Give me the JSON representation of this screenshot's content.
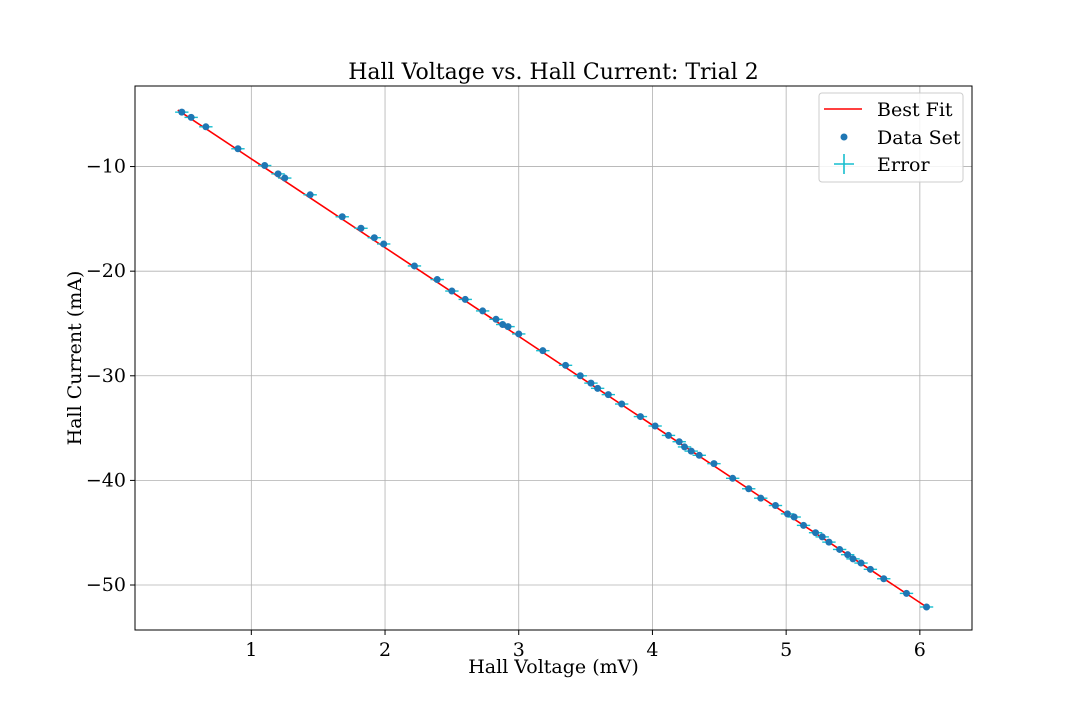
{
  "chart_data": {
    "type": "scatter",
    "title": "Hall Voltage vs. Hall Current: Trial 2",
    "xlabel": "Hall Voltage (mV)",
    "ylabel": "Hall Current (mA)",
    "xlim": [
      0.13,
      6.39
    ],
    "ylim": [
      -54.3,
      -2.3
    ],
    "xticks": [
      1,
      2,
      3,
      4,
      5,
      6
    ],
    "xtick_labels": [
      "1",
      "2",
      "3",
      "4",
      "5",
      "6"
    ],
    "yticks": [
      -10,
      -20,
      -30,
      -40,
      -50
    ],
    "ytick_labels": [
      "−10",
      "−20",
      "−30",
      "−40",
      "−50"
    ],
    "grid": true,
    "legend": {
      "location": "top-right",
      "entries": [
        "Best Fit",
        "Data Set",
        "Error"
      ]
    },
    "colors": {
      "fit": "#ff0000",
      "data": "#1f77b4",
      "error": "#17becf"
    },
    "series": [
      {
        "name": "Best Fit",
        "type": "line",
        "x": [
          0.45,
          6.05
        ],
        "y": [
          -4.6,
          -52.1
        ]
      },
      {
        "name": "Data Set",
        "type": "scatter",
        "x": [
          0.48,
          0.55,
          0.66,
          0.9,
          1.1,
          1.2,
          1.25,
          1.44,
          1.68,
          1.82,
          1.92,
          1.99,
          2.22,
          2.39,
          2.5,
          2.6,
          2.73,
          2.83,
          2.88,
          2.92,
          3.0,
          3.18,
          3.35,
          3.46,
          3.54,
          3.59,
          3.67,
          3.77,
          3.91,
          4.02,
          4.12,
          4.2,
          4.24,
          4.29,
          4.35,
          4.46,
          4.6,
          4.72,
          4.81,
          4.92,
          5.01,
          5.06,
          5.13,
          5.22,
          5.27,
          5.32,
          5.4,
          5.46,
          5.5,
          5.56,
          5.63,
          5.73,
          5.9,
          6.05
        ],
        "y": [
          -4.8,
          -5.3,
          -6.2,
          -8.3,
          -9.9,
          -10.7,
          -11.1,
          -12.7,
          -14.8,
          -15.9,
          -16.8,
          -17.4,
          -19.5,
          -20.8,
          -21.9,
          -22.7,
          -23.8,
          -24.6,
          -25.1,
          -25.3,
          -26.0,
          -27.6,
          -29.0,
          -30.0,
          -30.7,
          -31.2,
          -31.8,
          -32.7,
          -33.9,
          -34.8,
          -35.7,
          -36.3,
          -36.8,
          -37.2,
          -37.6,
          -38.4,
          -39.8,
          -40.8,
          -41.7,
          -42.4,
          -43.2,
          -43.5,
          -44.3,
          -45.0,
          -45.4,
          -45.9,
          -46.6,
          -47.1,
          -47.5,
          -47.9,
          -48.5,
          -49.4,
          -50.8,
          -52.1
        ]
      }
    ],
    "error_bars": {
      "name": "Error",
      "x_err": 0.05,
      "y_err": 0.15
    }
  }
}
